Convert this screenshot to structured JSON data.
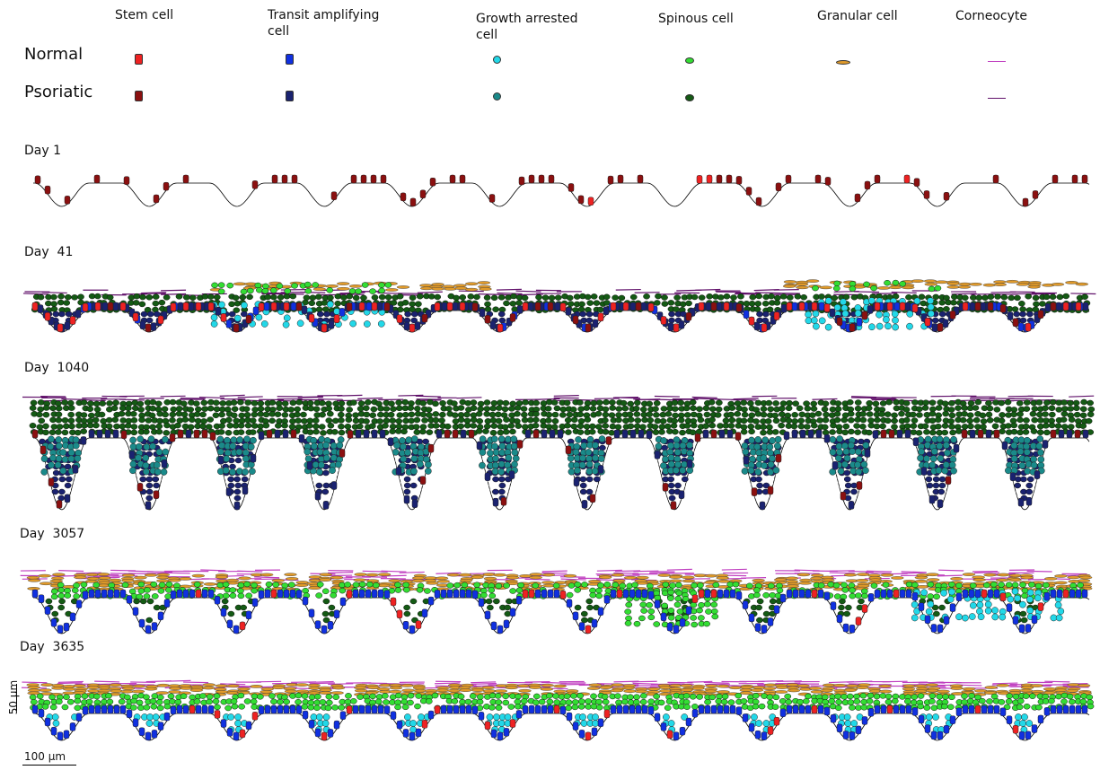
{
  "legend": {
    "columns": [
      {
        "label": "Stem cell",
        "normal_color": "#ee2222",
        "psoriatic_color": "#8b1010",
        "shape": "capsule"
      },
      {
        "label": "Transit amplifying cell",
        "line1": "Transit amplifying",
        "line2": "cell",
        "normal_color": "#1030e0",
        "psoriatic_color": "#1a2270",
        "shape": "capsule"
      },
      {
        "label": "Growth arrested cell",
        "line1": "Growth arrested",
        "line2": "cell",
        "normal_color": "#22d8e8",
        "psoriatic_color": "#1a8a8a",
        "shape": "ring"
      },
      {
        "label": "Spinous cell",
        "normal_color": "#33dd33",
        "psoriatic_color": "#145a14",
        "shape": "ellipse"
      },
      {
        "label": "Granular cell",
        "normal_color": "#e09a2a",
        "psoriatic_color": null,
        "shape": "flat"
      },
      {
        "label": "Corneocyte",
        "normal_color": "#c040c0",
        "psoriatic_color": "#60106a",
        "shape": "line"
      }
    ],
    "rows": {
      "normal": "Normal",
      "psoriatic": "Psoriatic"
    }
  },
  "panels": [
    {
      "label": "Day 1",
      "state": "initial"
    },
    {
      "label": "Day  41",
      "state": "psoriatic-onset"
    },
    {
      "label": "Day  1040",
      "state": "psoriatic-steady"
    },
    {
      "label": "Day  3057",
      "state": "recovery"
    },
    {
      "label": "Day  3635",
      "state": "normal"
    }
  ],
  "scale_bars": {
    "vertical": "50 µm",
    "horizontal": "100 µm"
  },
  "colors": {
    "stem_n": "#ee2222",
    "stem_p": "#8b1010",
    "ta_n": "#1030e0",
    "ta_p": "#1a2270",
    "ga_n": "#22d8e8",
    "ga_p": "#1a8a8a",
    "sp_n": "#33dd33",
    "sp_p": "#145a14",
    "gr": "#e09a2a",
    "co_n": "#c040c0",
    "co_p": "#60106a"
  }
}
